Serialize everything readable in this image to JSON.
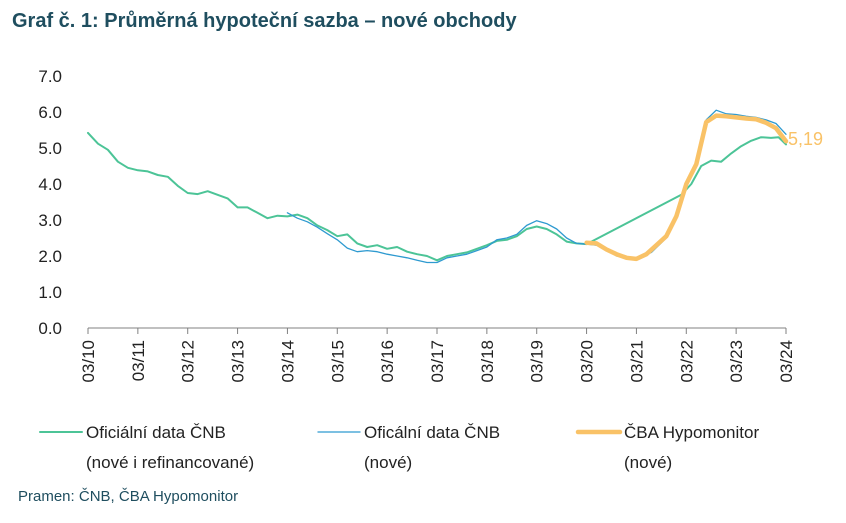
{
  "title": "Graf č. 1: Průměrná hypoteční sazba – nové obchody",
  "source": "Pramen: ČNB, ČBA Hypomonitor",
  "chart_data": {
    "type": "line",
    "ylim": [
      0,
      7
    ],
    "y_ticks": [
      "0.0",
      "1.0",
      "2.0",
      "3.0",
      "4.0",
      "5.0",
      "6.0",
      "7.0"
    ],
    "x_ticks": [
      "03/10",
      "03/11",
      "03/12",
      "03/13",
      "03/14",
      "03/15",
      "03/16",
      "03/17",
      "03/18",
      "03/19",
      "03/20",
      "03/21",
      "03/22",
      "03/23",
      "03/24"
    ],
    "x_unit": "year (03/YY = March)",
    "end_label": "5,19",
    "grid": false,
    "legend_position": "bottom",
    "series": [
      {
        "name": "Oficiální data ČNB",
        "name_line2": "(nové i refinancované)",
        "color": "#4cc497",
        "width": 2,
        "points": [
          [
            2010.0,
            5.42
          ],
          [
            2010.2,
            5.12
          ],
          [
            2010.4,
            4.95
          ],
          [
            2010.6,
            4.62
          ],
          [
            2010.8,
            4.45
          ],
          [
            2011.0,
            4.38
          ],
          [
            2011.2,
            4.35
          ],
          [
            2011.4,
            4.25
          ],
          [
            2011.6,
            4.2
          ],
          [
            2011.8,
            3.95
          ],
          [
            2012.0,
            3.75
          ],
          [
            2012.2,
            3.72
          ],
          [
            2012.4,
            3.8
          ],
          [
            2012.6,
            3.7
          ],
          [
            2012.8,
            3.6
          ],
          [
            2013.0,
            3.35
          ],
          [
            2013.2,
            3.35
          ],
          [
            2013.4,
            3.2
          ],
          [
            2013.6,
            3.05
          ],
          [
            2013.8,
            3.12
          ],
          [
            2014.0,
            3.1
          ],
          [
            2014.2,
            3.15
          ],
          [
            2014.4,
            3.05
          ],
          [
            2014.6,
            2.85
          ],
          [
            2014.8,
            2.72
          ],
          [
            2015.0,
            2.55
          ],
          [
            2015.2,
            2.6
          ],
          [
            2015.4,
            2.35
          ],
          [
            2015.6,
            2.25
          ],
          [
            2015.8,
            2.3
          ],
          [
            2016.0,
            2.2
          ],
          [
            2016.2,
            2.25
          ],
          [
            2016.4,
            2.12
          ],
          [
            2016.6,
            2.05
          ],
          [
            2016.8,
            2.0
          ],
          [
            2017.0,
            1.88
          ],
          [
            2017.2,
            2.0
          ],
          [
            2017.4,
            2.05
          ],
          [
            2017.6,
            2.1
          ],
          [
            2017.8,
            2.2
          ],
          [
            2018.0,
            2.3
          ],
          [
            2018.2,
            2.42
          ],
          [
            2018.4,
            2.45
          ],
          [
            2018.6,
            2.55
          ],
          [
            2018.8,
            2.75
          ],
          [
            2019.0,
            2.82
          ],
          [
            2019.2,
            2.75
          ],
          [
            2019.4,
            2.6
          ],
          [
            2019.6,
            2.4
          ],
          [
            2019.8,
            2.35
          ],
          [
            2020.0,
            2.33
          ],
          [
            2021.9,
            3.7
          ],
          [
            2022.1,
            4.0
          ],
          [
            2022.3,
            4.5
          ],
          [
            2022.5,
            4.65
          ],
          [
            2022.7,
            4.62
          ],
          [
            2022.9,
            4.85
          ],
          [
            2023.1,
            5.05
          ],
          [
            2023.3,
            5.2
          ],
          [
            2023.5,
            5.3
          ],
          [
            2023.7,
            5.28
          ],
          [
            2023.85,
            5.3
          ],
          [
            2024.0,
            5.1
          ]
        ]
      },
      {
        "name": "Oficální data ČNB",
        "name_line2": "(nové)",
        "color": "#2e9ad0",
        "width": 1.3,
        "points": [
          [
            2014.0,
            3.2
          ],
          [
            2014.2,
            3.05
          ],
          [
            2014.4,
            2.95
          ],
          [
            2014.6,
            2.8
          ],
          [
            2014.8,
            2.62
          ],
          [
            2015.0,
            2.45
          ],
          [
            2015.2,
            2.22
          ],
          [
            2015.4,
            2.12
          ],
          [
            2015.6,
            2.15
          ],
          [
            2015.8,
            2.12
          ],
          [
            2016.0,
            2.05
          ],
          [
            2016.2,
            2.0
          ],
          [
            2016.4,
            1.95
          ],
          [
            2016.6,
            1.88
          ],
          [
            2016.8,
            1.82
          ],
          [
            2017.0,
            1.82
          ],
          [
            2017.2,
            1.95
          ],
          [
            2017.4,
            2.0
          ],
          [
            2017.6,
            2.05
          ],
          [
            2017.8,
            2.15
          ],
          [
            2018.0,
            2.25
          ],
          [
            2018.2,
            2.45
          ],
          [
            2018.4,
            2.5
          ],
          [
            2018.6,
            2.6
          ],
          [
            2018.8,
            2.85
          ],
          [
            2019.0,
            2.98
          ],
          [
            2019.2,
            2.9
          ],
          [
            2019.4,
            2.75
          ],
          [
            2019.6,
            2.5
          ],
          [
            2019.8,
            2.35
          ],
          [
            2020.0,
            2.33
          ],
          [
            2020.2,
            2.3
          ],
          [
            2020.4,
            2.18
          ],
          [
            2020.6,
            2.0
          ],
          [
            2020.8,
            1.95
          ],
          [
            2021.0,
            1.92
          ],
          [
            2021.3,
            2.1
          ],
          [
            2021.6,
            2.5
          ],
          [
            2021.8,
            3.1
          ],
          [
            2022.0,
            3.9
          ],
          [
            2022.2,
            4.6
          ],
          [
            2022.4,
            5.78
          ],
          [
            2022.6,
            6.05
          ],
          [
            2022.8,
            5.95
          ],
          [
            2023.0,
            5.93
          ],
          [
            2023.2,
            5.88
          ],
          [
            2023.4,
            5.85
          ],
          [
            2023.6,
            5.78
          ],
          [
            2023.8,
            5.68
          ],
          [
            2024.0,
            5.38
          ]
        ]
      },
      {
        "name": "ČBA Hypomonitor",
        "name_line2": "(nové)",
        "color": "#f9c267",
        "width": 4.5,
        "points": [
          [
            2020.0,
            2.37
          ],
          [
            2020.2,
            2.35
          ],
          [
            2020.4,
            2.18
          ],
          [
            2020.6,
            2.05
          ],
          [
            2020.8,
            1.95
          ],
          [
            2021.0,
            1.92
          ],
          [
            2021.2,
            2.05
          ],
          [
            2021.4,
            2.3
          ],
          [
            2021.6,
            2.55
          ],
          [
            2021.8,
            3.1
          ],
          [
            2022.0,
            4.0
          ],
          [
            2022.2,
            4.55
          ],
          [
            2022.4,
            5.72
          ],
          [
            2022.6,
            5.9
          ],
          [
            2022.8,
            5.88
          ],
          [
            2023.0,
            5.85
          ],
          [
            2023.2,
            5.82
          ],
          [
            2023.4,
            5.8
          ],
          [
            2023.6,
            5.7
          ],
          [
            2023.8,
            5.55
          ],
          [
            2024.0,
            5.19
          ]
        ]
      }
    ]
  }
}
